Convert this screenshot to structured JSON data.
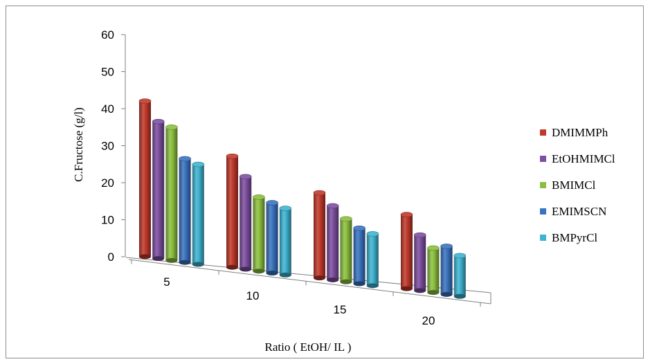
{
  "chart_data": {
    "type": "bar",
    "title": "",
    "xlabel": "Ratio ( EtOH/ IL )",
    "ylabel": "C.Fructose (g/l)",
    "ylim": [
      0,
      60
    ],
    "yticks": [
      0,
      10,
      20,
      30,
      40,
      50,
      60
    ],
    "categories": [
      "5",
      "10",
      "15",
      "20"
    ],
    "series": [
      {
        "name": "DMIMMPh",
        "color": "#c0392b",
        "values": [
          42,
          30,
          23,
          20
        ]
      },
      {
        "name": "EtOHMIMCl",
        "color": "#7d4fa0",
        "values": [
          37,
          25,
          20,
          15
        ]
      },
      {
        "name": "BMIMCl",
        "color": "#8cbf3f",
        "values": [
          36,
          20,
          17,
          12
        ]
      },
      {
        "name": "EMIMSCN",
        "color": "#3a73c0",
        "values": [
          28,
          19,
          15,
          13
        ]
      },
      {
        "name": "BMPyrCl",
        "color": "#3fb3d0",
        "values": [
          27,
          18,
          14,
          11
        ]
      }
    ],
    "grid": false,
    "legend_position": "right",
    "style": "3d clustered columns"
  }
}
